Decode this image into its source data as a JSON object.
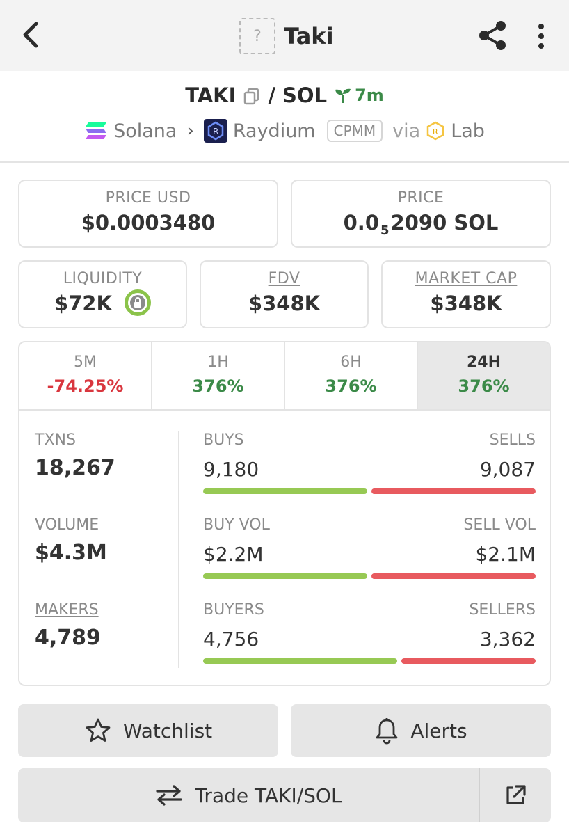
{
  "header": {
    "title": "Taki",
    "logo_placeholder": "?",
    "icons": {
      "back": "back-arrow-icon",
      "share": "share-icon",
      "more": "more-vertical-icon"
    }
  },
  "pair": {
    "base": "TAKI",
    "slash": "/",
    "quote": "SOL",
    "age": "7m"
  },
  "route": {
    "chain": "Solana",
    "dex": "Raydium",
    "pool_type": "CPMM",
    "via": "via",
    "launchpad": "Lab"
  },
  "prices": {
    "price_usd_label": "PRICE USD",
    "price_usd": "$0.0003480",
    "price_label": "PRICE",
    "price_prefix": "0.0",
    "price_subscript": "5",
    "price_rest": "2090 SOL"
  },
  "metrics": {
    "liquidity_label": "LIQUIDITY",
    "liquidity": "$72K",
    "fdv_label": "FDV",
    "fdv": "$348K",
    "mcap_label": "MARKET CAP",
    "mcap": "$348K"
  },
  "tabs": [
    {
      "label": "5M",
      "value": "-74.25%"
    },
    {
      "label": "1H",
      "value": "376%"
    },
    {
      "label": "6H",
      "value": "376%"
    },
    {
      "label": "24H",
      "value": "376%"
    }
  ],
  "stats": {
    "txns_label": "TXNS",
    "txns": "18,267",
    "volume_label": "VOLUME",
    "volume": "$4.3M",
    "makers_label": "MAKERS",
    "makers": "4,789",
    "buys_label": "BUYS",
    "buys": "9,180",
    "sells_label": "SELLS",
    "sells": "9,087",
    "buy_vol_label": "BUY VOL",
    "buy_vol": "$2.2M",
    "sell_vol_label": "SELL VOL",
    "sell_vol": "$2.1M",
    "buyers_label": "BUYERS",
    "buyers": "4,756",
    "sellers_label": "SELLERS",
    "sellers": "3,362",
    "bars": {
      "txns_buy_fraction": 0.5,
      "vol_buy_fraction": 0.5,
      "makers_buy_fraction": 0.59
    }
  },
  "actions": {
    "watchlist": "Watchlist",
    "alerts": "Alerts",
    "trade": "Trade TAKI/SOL"
  },
  "colors": {
    "positive": "#3b8a48",
    "negative": "#d9363e",
    "buy_bar": "#97c954",
    "sell_bar": "#e85a5f"
  }
}
